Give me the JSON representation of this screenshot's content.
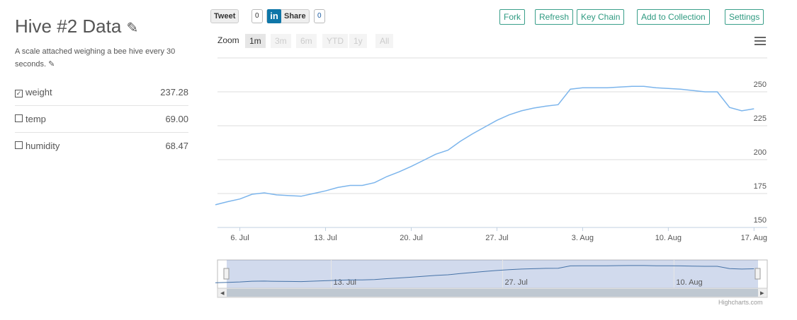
{
  "header": {
    "title": "Hive #2 Data",
    "description": "A scale attached weighing a bee hive every 30 seconds."
  },
  "fields": [
    {
      "name": "weight",
      "value": "237.28"
    },
    {
      "name": "temp",
      "value": "69.00"
    },
    {
      "name": "humidity",
      "value": "68.47"
    }
  ],
  "social": {
    "tweet": "Tweet",
    "tweet_count": "0",
    "share": "Share",
    "share_count": "0"
  },
  "actions": [
    "Fork",
    "Refresh",
    "Key Chain",
    "Add to Collection",
    "Settings"
  ],
  "zoom": {
    "label": "Zoom",
    "options": [
      "1m",
      "3m",
      "6m",
      "YTD",
      "1y",
      "All"
    ]
  },
  "credit": "Highcharts.com",
  "chart_data": {
    "type": "line",
    "x": [
      "4. Jul",
      "5. Jul",
      "6. Jul",
      "7. Jul",
      "8. Jul",
      "9. Jul",
      "10. Jul",
      "11. Jul",
      "12. Jul",
      "13. Jul",
      "14. Jul",
      "15. Jul",
      "16. Jul",
      "17. Jul",
      "18. Jul",
      "19. Jul",
      "20. Jul",
      "21. Jul",
      "22. Jul",
      "23. Jul",
      "24. Jul",
      "25. Jul",
      "26. Jul",
      "27. Jul",
      "28. Jul",
      "29. Jul",
      "30. Jul",
      "31. Jul",
      "1. Aug",
      "2. Aug",
      "3. Aug",
      "4. Aug",
      "5. Aug",
      "6. Aug",
      "7. Aug",
      "8. Aug",
      "9. Aug",
      "10. Aug",
      "11. Aug",
      "12. Aug",
      "13. Aug",
      "14. Aug",
      "15. Aug",
      "16. Aug",
      "17. Aug"
    ],
    "series": [
      {
        "name": "weight",
        "color": "#7cb5ec",
        "values": [
          166.7,
          169,
          171,
          174.5,
          175.5,
          174,
          173.5,
          173,
          175,
          177,
          179.5,
          181,
          181,
          183,
          187.5,
          191,
          195,
          199.5,
          204,
          207,
          213.5,
          219,
          224,
          229,
          233,
          236,
          238,
          239.5,
          240.5,
          252,
          253,
          253,
          253,
          253.5,
          254,
          254,
          253,
          252.5,
          252,
          251,
          250,
          250,
          238.5,
          236,
          237.5
        ]
      }
    ],
    "xticks": [
      "6. Jul",
      "13. Jul",
      "20. Jul",
      "27. Jul",
      "3. Aug",
      "10. Aug",
      "17. Aug"
    ],
    "ylim": [
      150,
      275
    ],
    "yticks": [
      150,
      175,
      200,
      225,
      250
    ],
    "grid": true
  }
}
